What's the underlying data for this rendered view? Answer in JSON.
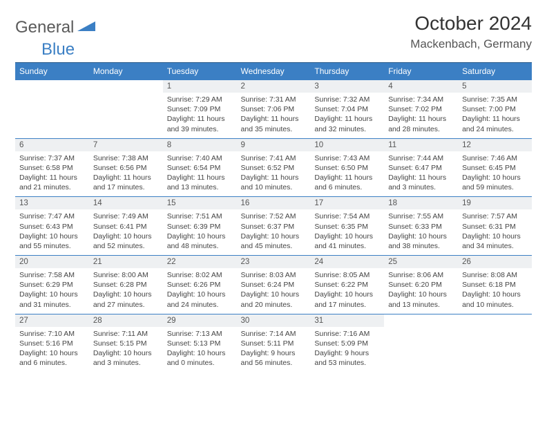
{
  "logo": {
    "part1": "General",
    "part2": "Blue"
  },
  "title": "October 2024",
  "location": "Mackenbach, Germany",
  "colors": {
    "header_bg": "#3b7fc4",
    "header_text": "#ffffff",
    "daynum_bg": "#eef0f2",
    "border": "#3b7fc4",
    "body_text": "#444444"
  },
  "weekdays": [
    "Sunday",
    "Monday",
    "Tuesday",
    "Wednesday",
    "Thursday",
    "Friday",
    "Saturday"
  ],
  "weeks": [
    [
      null,
      null,
      {
        "n": "1",
        "sr": "7:29 AM",
        "ss": "7:09 PM",
        "dl": "11 hours and 39 minutes."
      },
      {
        "n": "2",
        "sr": "7:31 AM",
        "ss": "7:06 PM",
        "dl": "11 hours and 35 minutes."
      },
      {
        "n": "3",
        "sr": "7:32 AM",
        "ss": "7:04 PM",
        "dl": "11 hours and 32 minutes."
      },
      {
        "n": "4",
        "sr": "7:34 AM",
        "ss": "7:02 PM",
        "dl": "11 hours and 28 minutes."
      },
      {
        "n": "5",
        "sr": "7:35 AM",
        "ss": "7:00 PM",
        "dl": "11 hours and 24 minutes."
      }
    ],
    [
      {
        "n": "6",
        "sr": "7:37 AM",
        "ss": "6:58 PM",
        "dl": "11 hours and 21 minutes."
      },
      {
        "n": "7",
        "sr": "7:38 AM",
        "ss": "6:56 PM",
        "dl": "11 hours and 17 minutes."
      },
      {
        "n": "8",
        "sr": "7:40 AM",
        "ss": "6:54 PM",
        "dl": "11 hours and 13 minutes."
      },
      {
        "n": "9",
        "sr": "7:41 AM",
        "ss": "6:52 PM",
        "dl": "11 hours and 10 minutes."
      },
      {
        "n": "10",
        "sr": "7:43 AM",
        "ss": "6:50 PM",
        "dl": "11 hours and 6 minutes."
      },
      {
        "n": "11",
        "sr": "7:44 AM",
        "ss": "6:47 PM",
        "dl": "11 hours and 3 minutes."
      },
      {
        "n": "12",
        "sr": "7:46 AM",
        "ss": "6:45 PM",
        "dl": "10 hours and 59 minutes."
      }
    ],
    [
      {
        "n": "13",
        "sr": "7:47 AM",
        "ss": "6:43 PM",
        "dl": "10 hours and 55 minutes."
      },
      {
        "n": "14",
        "sr": "7:49 AM",
        "ss": "6:41 PM",
        "dl": "10 hours and 52 minutes."
      },
      {
        "n": "15",
        "sr": "7:51 AM",
        "ss": "6:39 PM",
        "dl": "10 hours and 48 minutes."
      },
      {
        "n": "16",
        "sr": "7:52 AM",
        "ss": "6:37 PM",
        "dl": "10 hours and 45 minutes."
      },
      {
        "n": "17",
        "sr": "7:54 AM",
        "ss": "6:35 PM",
        "dl": "10 hours and 41 minutes."
      },
      {
        "n": "18",
        "sr": "7:55 AM",
        "ss": "6:33 PM",
        "dl": "10 hours and 38 minutes."
      },
      {
        "n": "19",
        "sr": "7:57 AM",
        "ss": "6:31 PM",
        "dl": "10 hours and 34 minutes."
      }
    ],
    [
      {
        "n": "20",
        "sr": "7:58 AM",
        "ss": "6:29 PM",
        "dl": "10 hours and 31 minutes."
      },
      {
        "n": "21",
        "sr": "8:00 AM",
        "ss": "6:28 PM",
        "dl": "10 hours and 27 minutes."
      },
      {
        "n": "22",
        "sr": "8:02 AM",
        "ss": "6:26 PM",
        "dl": "10 hours and 24 minutes."
      },
      {
        "n": "23",
        "sr": "8:03 AM",
        "ss": "6:24 PM",
        "dl": "10 hours and 20 minutes."
      },
      {
        "n": "24",
        "sr": "8:05 AM",
        "ss": "6:22 PM",
        "dl": "10 hours and 17 minutes."
      },
      {
        "n": "25",
        "sr": "8:06 AM",
        "ss": "6:20 PM",
        "dl": "10 hours and 13 minutes."
      },
      {
        "n": "26",
        "sr": "8:08 AM",
        "ss": "6:18 PM",
        "dl": "10 hours and 10 minutes."
      }
    ],
    [
      {
        "n": "27",
        "sr": "7:10 AM",
        "ss": "5:16 PM",
        "dl": "10 hours and 6 minutes."
      },
      {
        "n": "28",
        "sr": "7:11 AM",
        "ss": "5:15 PM",
        "dl": "10 hours and 3 minutes."
      },
      {
        "n": "29",
        "sr": "7:13 AM",
        "ss": "5:13 PM",
        "dl": "10 hours and 0 minutes."
      },
      {
        "n": "30",
        "sr": "7:14 AM",
        "ss": "5:11 PM",
        "dl": "9 hours and 56 minutes."
      },
      {
        "n": "31",
        "sr": "7:16 AM",
        "ss": "5:09 PM",
        "dl": "9 hours and 53 minutes."
      },
      null,
      null
    ]
  ],
  "labels": {
    "sunrise": "Sunrise:",
    "sunset": "Sunset:",
    "daylight": "Daylight:"
  }
}
